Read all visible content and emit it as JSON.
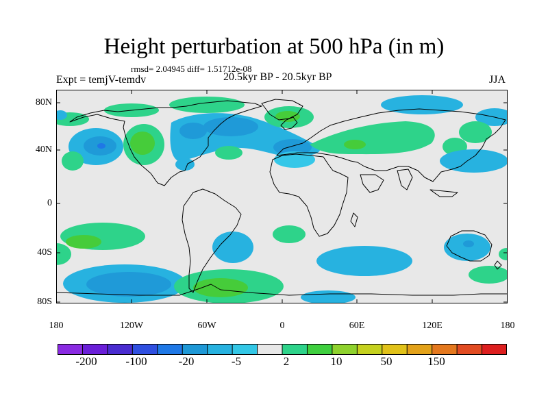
{
  "title": "Height perturbation at 500 hPa (in m)",
  "stats": "rmsd= 2.04945  diff= 1.51712e-08",
  "left_label": "Expt = temjV-temdv",
  "center_label": "20.5kyr BP - 20.5kyr BP",
  "right_label": "JJA",
  "y_ticks": [
    "80N",
    "40N",
    "0",
    "40S",
    "80S"
  ],
  "x_ticks": [
    "180",
    "120W",
    "60W",
    "0",
    "60E",
    "120E",
    "180"
  ],
  "colorbar": {
    "colors": [
      "#8a2be2",
      "#6a1fd8",
      "#4a2cd0",
      "#2f4fe0",
      "#1f78e6",
      "#1e98d6",
      "#27b2e0",
      "#33c7e6",
      "#e8e8e8",
      "#2ed38a",
      "#3fcf3f",
      "#8fd22e",
      "#c5d11f",
      "#e1c21a",
      "#e3a21a",
      "#e4781e",
      "#e24c22",
      "#dd1f1f"
    ],
    "labels": [
      "-200",
      "-100",
      "-20",
      "-5",
      "2",
      "10",
      "50",
      "150"
    ]
  },
  "map_background": "#e8e8e8",
  "anomaly_colors": {
    "strong_negative": "#1f9ad8",
    "negative": "#27b2e0",
    "weak_negative": "#35c7e8",
    "weak_positive": "#2ed38a",
    "positive": "#46cc3a",
    "strong_positive": "#8fd22e"
  }
}
